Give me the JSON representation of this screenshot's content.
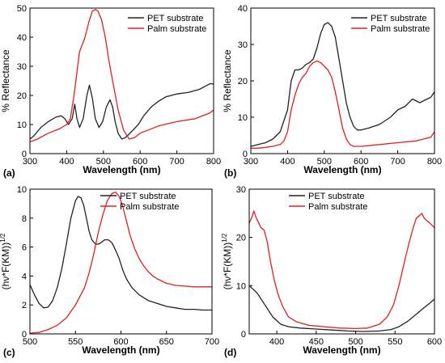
{
  "chart_data": [
    {
      "type": "line",
      "panel_label": "(a)",
      "xlabel": "Wavelength (nm)",
      "ylabel": "% Reflectance",
      "xlim": [
        300,
        800
      ],
      "ylim": [
        0,
        50
      ],
      "xticks": [
        300,
        400,
        500,
        600,
        700,
        800
      ],
      "yticks": [
        0,
        10,
        20,
        30,
        40,
        50
      ],
      "legend": "top-right",
      "grid": false,
      "series": [
        {
          "name": "PET substrate",
          "color": "#222222",
          "x": [
            300,
            310,
            330,
            350,
            370,
            385,
            395,
            405,
            415,
            422,
            428,
            435,
            445,
            455,
            462,
            470,
            478,
            488,
            498,
            508,
            518,
            525,
            532,
            540,
            550,
            560,
            568,
            580,
            595,
            610,
            630,
            650,
            670,
            700,
            730,
            760,
            790,
            800
          ],
          "y": [
            5,
            6,
            9,
            11,
            12.5,
            13,
            12,
            10,
            12,
            17,
            12,
            9,
            12,
            20,
            23.5,
            19,
            12,
            9,
            11,
            16,
            18.5,
            16,
            11,
            7,
            5,
            5.5,
            6.5,
            8,
            10,
            13,
            16,
            18,
            19.5,
            20.5,
            21,
            22,
            24,
            24
          ]
        },
        {
          "name": "Palm substrate",
          "color": "#e02020",
          "x": [
            300,
            320,
            350,
            380,
            400,
            410,
            420,
            435,
            450,
            460,
            470,
            478,
            485,
            495,
            505,
            515,
            525,
            540,
            555,
            570,
            585,
            600,
            620,
            650,
            700,
            750,
            790,
            800
          ],
          "y": [
            4,
            5,
            7,
            8.5,
            10,
            12,
            20,
            35,
            40,
            45,
            49,
            49.5,
            49,
            46,
            40,
            32,
            25,
            15,
            8,
            5,
            5.5,
            7,
            8,
            9.5,
            11,
            12,
            14,
            15
          ]
        }
      ]
    },
    {
      "type": "line",
      "panel_label": "(b)",
      "xlabel": "Wavelength (nm)",
      "ylabel": "% Reflectance",
      "xlim": [
        300,
        800
      ],
      "ylim": [
        0,
        40
      ],
      "xticks": [
        300,
        400,
        500,
        600,
        700,
        800
      ],
      "yticks": [
        0,
        10,
        20,
        30,
        40
      ],
      "legend": "top-right",
      "grid": false,
      "series": [
        {
          "name": "PET substrate",
          "color": "#222222",
          "x": [
            300,
            320,
            340,
            360,
            380,
            400,
            410,
            420,
            430,
            440,
            450,
            460,
            470,
            480,
            490,
            500,
            510,
            520,
            530,
            540,
            550,
            560,
            570,
            580,
            590,
            600,
            620,
            650,
            680,
            700,
            720,
            740,
            760,
            780,
            790,
            800
          ],
          "y": [
            2,
            2.5,
            3,
            4,
            6,
            12,
            20,
            23,
            23,
            23.5,
            24.5,
            25,
            26,
            29,
            33,
            35.5,
            36,
            35,
            32,
            26,
            20,
            14,
            10,
            7.5,
            6.5,
            6.5,
            7,
            8,
            10,
            12,
            13,
            15,
            14,
            15,
            15.5,
            17
          ]
        },
        {
          "name": "Palm substrate",
          "color": "#e02020",
          "x": [
            300,
            320,
            340,
            360,
            380,
            390,
            400,
            410,
            420,
            430,
            440,
            450,
            460,
            470,
            480,
            490,
            500,
            510,
            520,
            530,
            540,
            550,
            560,
            570,
            580,
            590,
            600,
            650,
            700,
            750,
            790,
            800
          ],
          "y": [
            1.5,
            1.5,
            1.7,
            2,
            2.5,
            3.5,
            6,
            12,
            16,
            19,
            21,
            22,
            24,
            25,
            25.5,
            25,
            24,
            23,
            21,
            17,
            12,
            7,
            4,
            2.5,
            2,
            2,
            2,
            2.5,
            3,
            3.5,
            4.5,
            6
          ]
        }
      ]
    },
    {
      "type": "line",
      "panel_label": "(c)",
      "xlabel": "Wavelength (nm)",
      "ylabel": "(hν*F(KM))",
      "ylabel_sup": "1/2",
      "xlim": [
        500,
        700
      ],
      "ylim": [
        0,
        10
      ],
      "xticks": [
        500,
        550,
        600,
        650,
        700
      ],
      "yticks": [
        0,
        2,
        4,
        6,
        8,
        10
      ],
      "legend": "top-right",
      "grid": false,
      "series": [
        {
          "name": "PET substrate",
          "color": "#222222",
          "x": [
            500,
            505,
            510,
            515,
            520,
            525,
            530,
            535,
            540,
            545,
            550,
            553,
            556,
            559,
            562,
            565,
            568,
            572,
            575,
            578,
            582,
            586,
            590,
            594,
            598,
            602,
            606,
            612,
            620,
            630,
            640,
            650,
            660,
            670,
            680,
            690,
            700
          ],
          "y": [
            3.4,
            2.7,
            2.1,
            1.8,
            1.85,
            2.3,
            3.2,
            4.5,
            6.2,
            8,
            9.2,
            9.5,
            9.4,
            8.9,
            8,
            7.1,
            6.5,
            6.2,
            6.2,
            6.3,
            6.5,
            6.5,
            6.3,
            5.8,
            5.2,
            4.4,
            3.8,
            3.2,
            2.7,
            2.3,
            2.1,
            1.9,
            1.8,
            1.7,
            1.7,
            1.65,
            1.65
          ]
        },
        {
          "name": "Palm substrate",
          "color": "#e02020",
          "x": [
            500,
            510,
            520,
            530,
            540,
            550,
            560,
            565,
            570,
            575,
            580,
            585,
            590,
            594,
            598,
            602,
            606,
            610,
            615,
            620,
            625,
            630,
            635,
            640,
            650,
            660,
            670,
            680,
            690,
            700
          ],
          "y": [
            0.05,
            0.1,
            0.3,
            0.6,
            1.1,
            2,
            3.2,
            4.2,
            5.5,
            7,
            8.2,
            9.2,
            9.7,
            9.8,
            9.5,
            8.8,
            7.8,
            6.8,
            5.9,
            5.2,
            4.7,
            4.3,
            4,
            3.8,
            3.5,
            3.35,
            3.3,
            3.25,
            3.25,
            3.25
          ]
        }
      ]
    },
    {
      "type": "line",
      "panel_label": "(d)",
      "xlabel": "Wavelength (nm)",
      "ylabel": "(hν*F(KM))",
      "ylabel_sup": "1/2",
      "xlim": [
        365,
        600
      ],
      "ylim": [
        0,
        30
      ],
      "xticks": [
        400,
        450,
        500,
        550,
        600
      ],
      "yticks": [
        0,
        10,
        20,
        30
      ],
      "legend": "top-center",
      "grid": false,
      "series": [
        {
          "name": "PET substrate",
          "color": "#222222",
          "x": [
            365,
            375,
            385,
            395,
            405,
            415,
            430,
            450,
            470,
            490,
            510,
            530,
            545,
            555,
            565,
            575,
            585,
            595,
            600
          ],
          "y": [
            10,
            8.5,
            6,
            3.5,
            2,
            1.5,
            1.2,
            1,
            0.8,
            0.6,
            0.5,
            0.6,
            0.9,
            1.5,
            2.5,
            3.8,
            5.2,
            6.5,
            7.2
          ]
        },
        {
          "name": "Palm substrate",
          "color": "#e02020",
          "x": [
            365,
            368,
            371,
            374,
            377,
            380,
            384,
            388,
            392,
            397,
            402,
            408,
            415,
            425,
            440,
            460,
            480,
            500,
            515,
            530,
            540,
            548,
            555,
            562,
            568,
            573,
            577,
            581,
            584,
            587,
            590,
            594,
            600
          ],
          "y": [
            23,
            24,
            25.5,
            24,
            23,
            22,
            21.5,
            19,
            15,
            11,
            8,
            5.5,
            3.5,
            2.5,
            1.8,
            1.5,
            1.2,
            1.1,
            1.2,
            2,
            3.5,
            6,
            10,
            15,
            19,
            22,
            24,
            24.5,
            25,
            24,
            23.5,
            23,
            22
          ]
        }
      ]
    }
  ]
}
